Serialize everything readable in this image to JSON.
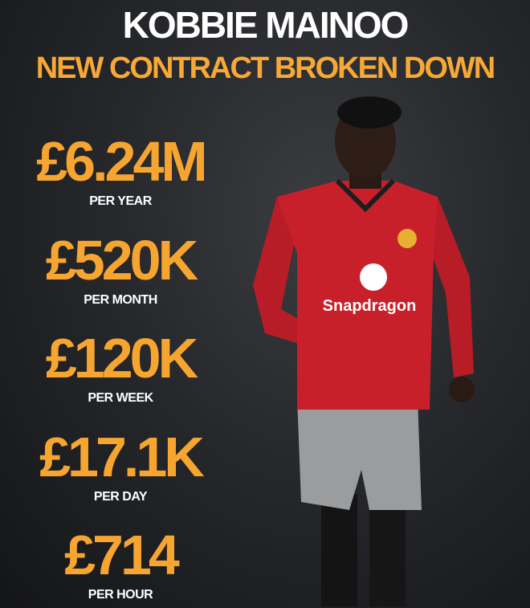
{
  "header": {
    "title": "KOBBIE MAINOO",
    "subtitle": "NEW CONTRACT BROKEN DOWN"
  },
  "stats": [
    {
      "value": "£6.24M",
      "label": "PER YEAR"
    },
    {
      "value": "£520K",
      "label": "PER MONTH"
    },
    {
      "value": "£120K",
      "label": "PER WEEK"
    },
    {
      "value": "£17.1K",
      "label": "PER DAY"
    },
    {
      "value": "£714",
      "label": "PER HOUR"
    }
  ],
  "photo": {
    "shirt_sponsor": "Snapdragon"
  },
  "colors": {
    "accent": "#f7a531",
    "title": "#ffffff",
    "background": "#25272a",
    "shirt": "#c8202a"
  }
}
